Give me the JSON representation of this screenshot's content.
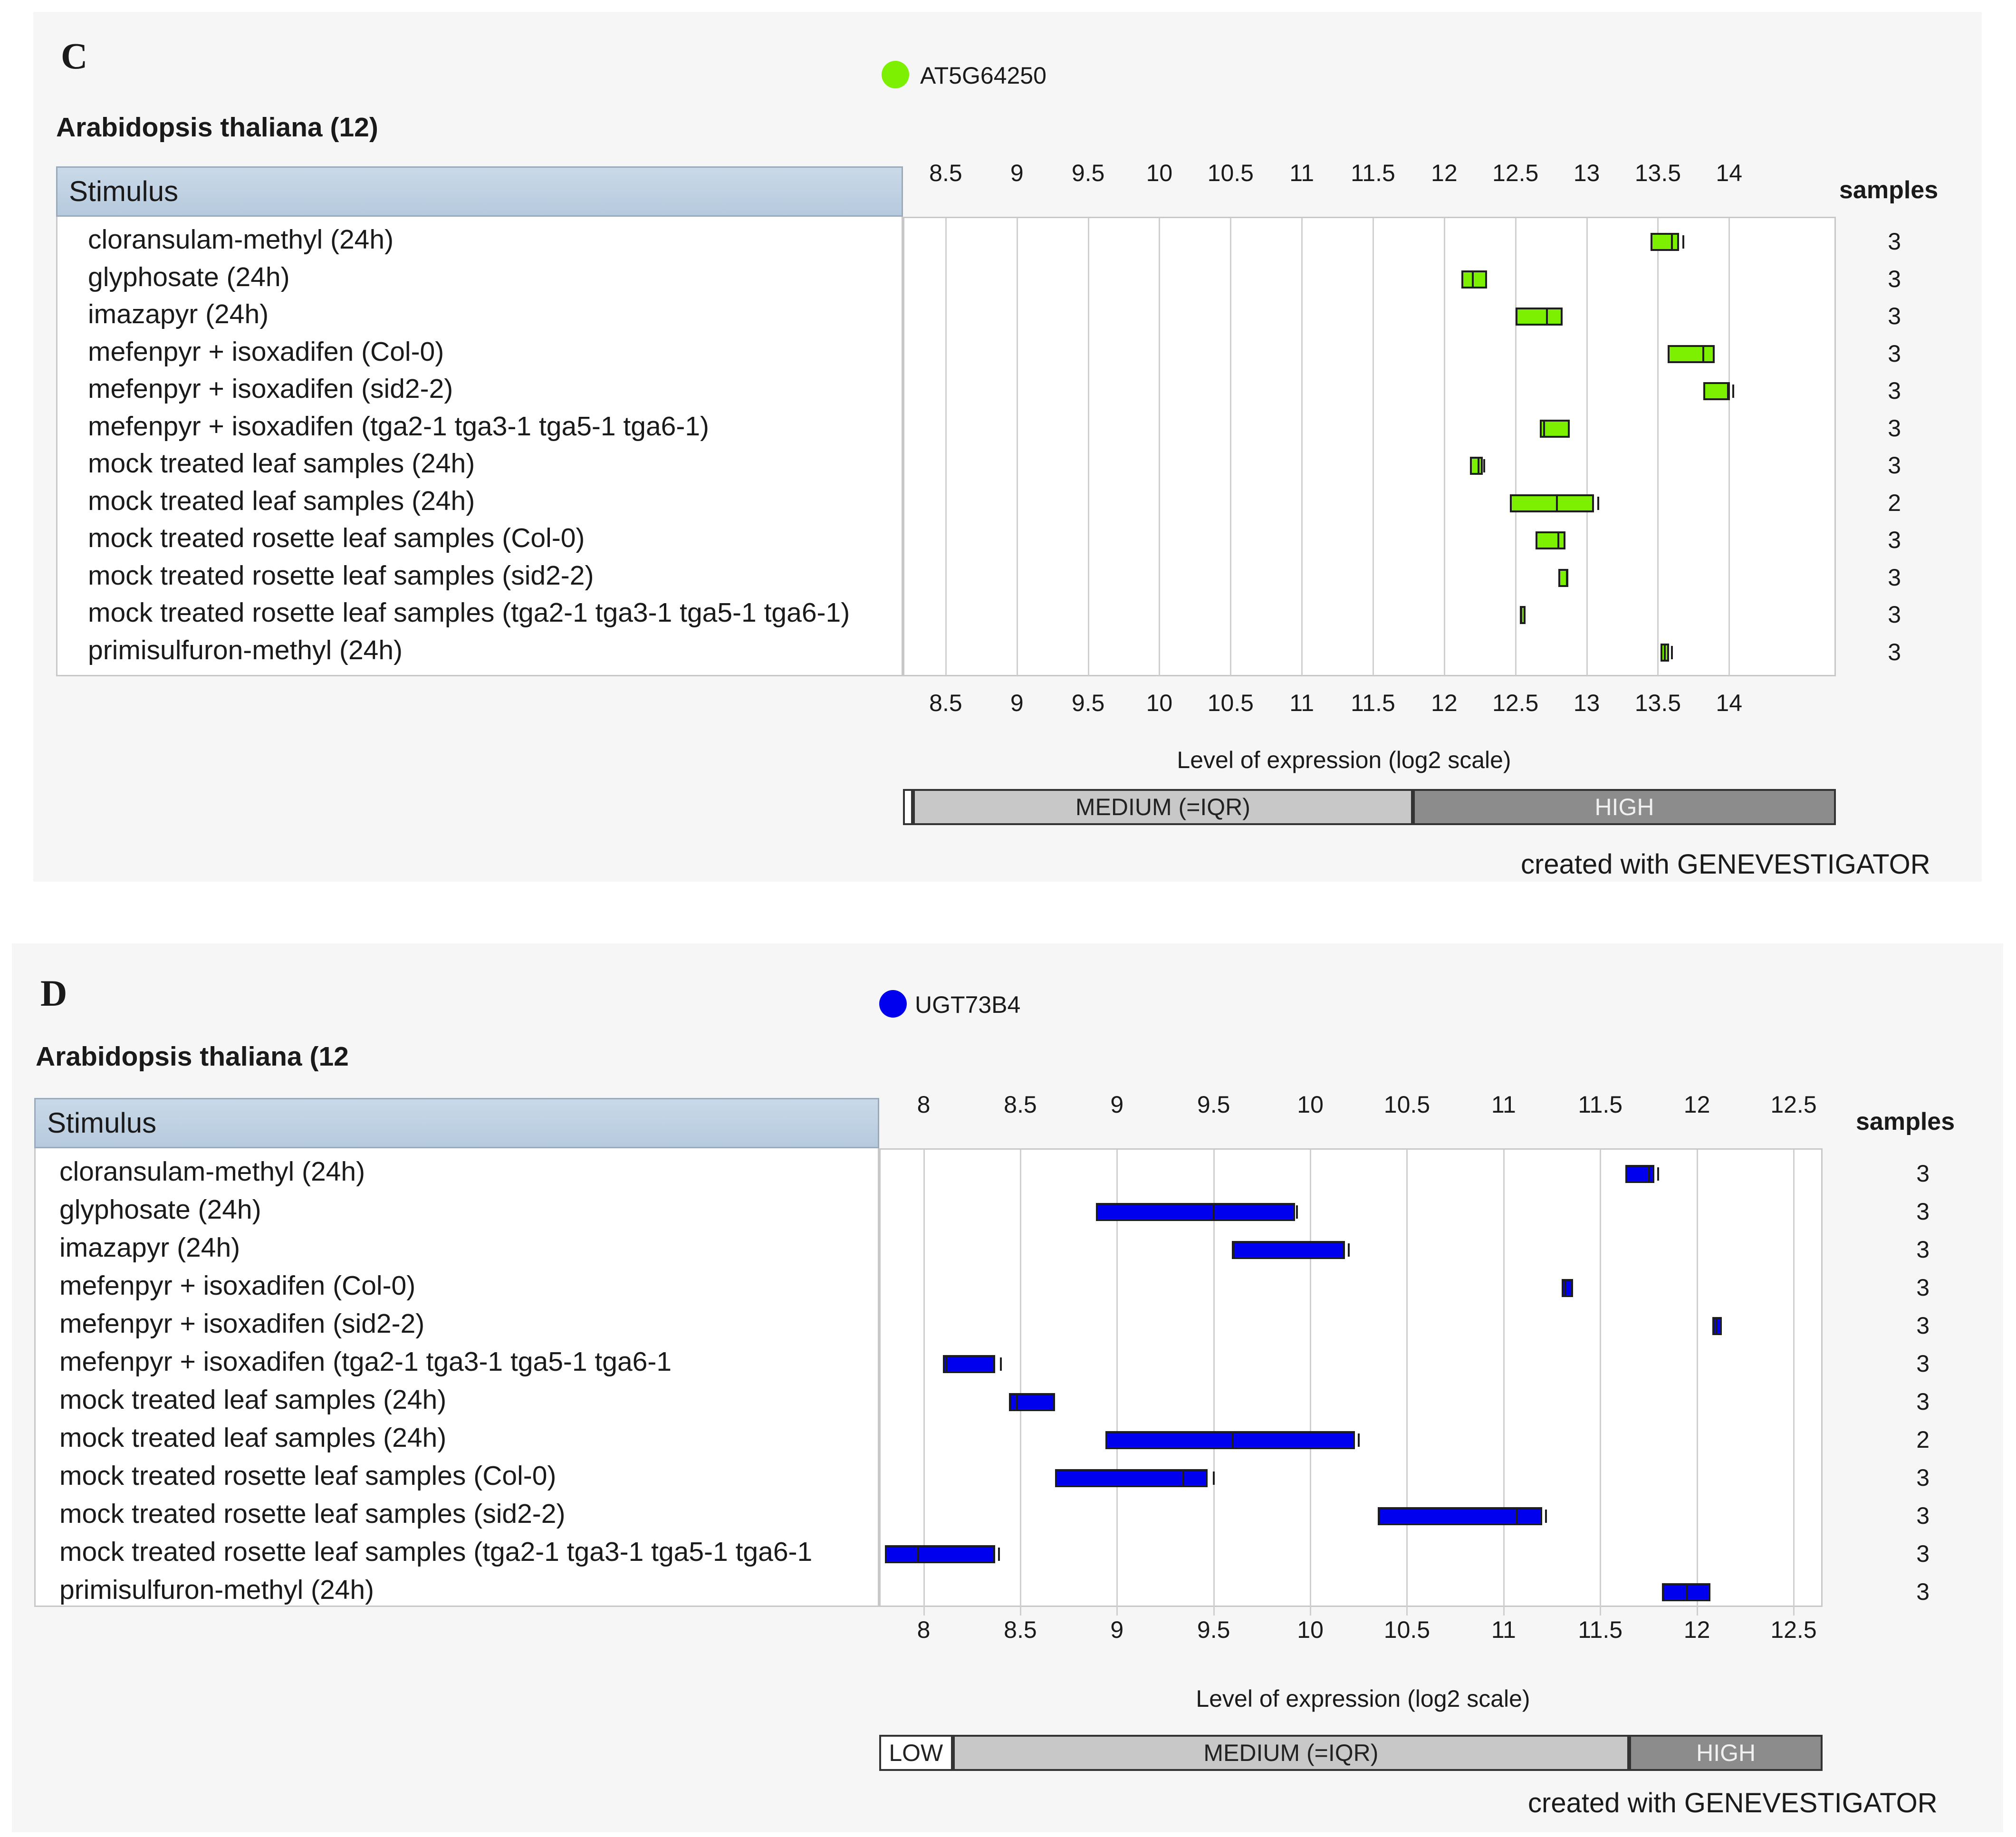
{
  "chart_data": [
    {
      "type": "box",
      "panel_label": "C",
      "legend": {
        "label": "AT5G64250",
        "color": "#7cf000"
      },
      "species_title": "Arabidopsis thaliana (12)",
      "column_header": "Stimulus",
      "samples_header": "samples",
      "x_ticks": [
        "8.5",
        "9",
        "9.5",
        "10",
        "10.5",
        "11",
        "11.5",
        "12",
        "12.5",
        "13",
        "13.5",
        "14"
      ],
      "xlim": [
        8.2,
        14.75
      ],
      "xlabel": "Level of expression (log2 scale)",
      "rows": [
        {
          "label": "cloransulam-methyl (24h)",
          "low": 13.45,
          "q1": 13.45,
          "median": 13.6,
          "q3": 13.65,
          "high": 13.68,
          "samples": "3"
        },
        {
          "label": "glyphosate (24h)",
          "low": 12.12,
          "q1": 12.12,
          "median": 12.2,
          "q3": 12.3,
          "high": 12.3,
          "samples": "3"
        },
        {
          "label": "imazapyr (24h)",
          "low": 12.5,
          "q1": 12.5,
          "median": 12.72,
          "q3": 12.83,
          "high": 12.83,
          "samples": "3"
        },
        {
          "label": "mefenpyr + isoxadifen (Col-0)",
          "low": 13.57,
          "q1": 13.57,
          "median": 13.82,
          "q3": 13.9,
          "high": 13.9,
          "samples": "3"
        },
        {
          "label": "mefenpyr + isoxadifen (sid2-2)",
          "low": 13.82,
          "q1": 13.82,
          "median": 14.0,
          "q3": 14.0,
          "high": 14.03,
          "samples": "3"
        },
        {
          "label": "mefenpyr + isoxadifen (tga2-1 tga3-1 tga5-1 tga6-1)",
          "low": 12.65,
          "q1": 12.67,
          "median": 12.7,
          "q3": 12.88,
          "high": 12.88,
          "samples": "3"
        },
        {
          "label": "mock treated leaf samples (24h)",
          "low": 12.18,
          "q1": 12.18,
          "median": 12.24,
          "q3": 12.27,
          "high": 12.28,
          "samples": "3"
        },
        {
          "label": "mock treated leaf samples (24h)",
          "low": 12.46,
          "q1": 12.46,
          "median": 12.79,
          "q3": 13.05,
          "high": 13.08,
          "samples": "2"
        },
        {
          "label": "mock treated rosette leaf samples (Col-0)",
          "low": 12.64,
          "q1": 12.64,
          "median": 12.8,
          "q3": 12.85,
          "high": 12.85,
          "samples": "3"
        },
        {
          "label": "mock treated rosette leaf samples (sid2-2)",
          "low": 12.8,
          "q1": 12.8,
          "median": 12.86,
          "q3": 12.87,
          "high": 12.87,
          "samples": "3"
        },
        {
          "label": "mock treated rosette leaf samples (tga2-1 tga3-1 tga5-1 tga6-1)",
          "low": 12.53,
          "q1": 12.53,
          "median": 12.54,
          "q3": 12.56,
          "high": 12.56,
          "samples": "3"
        },
        {
          "label": "primisulfuron-methyl (24h)",
          "low": 13.52,
          "q1": 13.52,
          "median": 13.55,
          "q3": 13.58,
          "high": 13.6,
          "samples": "3"
        }
      ],
      "levels": [
        {
          "label": "",
          "from": 8.2,
          "to": 8.27,
          "color": "#ffffff",
          "text_color": "#222222"
        },
        {
          "label": "MEDIUM (=IQR)",
          "from": 8.27,
          "to": 11.78,
          "color": "#c8c8c8",
          "text_color": "#222222"
        },
        {
          "label": "HIGH",
          "from": 11.78,
          "to": 14.75,
          "color": "#8c8c8c",
          "text_color": "#f0f0f0"
        }
      ],
      "credit": "created with GENEVESTIGATOR"
    },
    {
      "type": "box",
      "panel_label": "D",
      "legend": {
        "label": "UGT73B4",
        "color": "#0000ee"
      },
      "species_title": "Arabidopsis thaliana (12",
      "column_header": "Stimulus",
      "samples_header": "samples",
      "x_ticks": [
        "8",
        "8.5",
        "9",
        "9.5",
        "10",
        "10.5",
        "11",
        "11.5",
        "12",
        "12.5"
      ],
      "xlim": [
        7.77,
        12.65
      ],
      "xlabel": "Level of expression (log2 scale)",
      "rows": [
        {
          "label": "cloransulam-methyl (24h)",
          "low": 11.63,
          "q1": 11.63,
          "median": 11.75,
          "q3": 11.78,
          "high": 11.8,
          "samples": "3"
        },
        {
          "label": "glyphosate (24h)",
          "low": 8.89,
          "q1": 8.89,
          "median": 9.5,
          "q3": 9.92,
          "high": 9.93,
          "samples": "3"
        },
        {
          "label": "imazapyr (24h)",
          "low": 9.6,
          "q1": 9.6,
          "median": 9.6,
          "q3": 10.18,
          "high": 10.2,
          "samples": "3"
        },
        {
          "label": "mefenpyr + isoxadifen (Col-0)",
          "low": 11.3,
          "q1": 11.3,
          "median": 11.32,
          "q3": 11.36,
          "high": 11.36,
          "samples": "3"
        },
        {
          "label": "mefenpyr + isoxadifen (sid2-2)",
          "low": 12.08,
          "q1": 12.08,
          "median": 12.1,
          "q3": 12.13,
          "high": 12.13,
          "samples": "3"
        },
        {
          "label": "mefenpyr + isoxadifen (tga2-1 tga3-1 tga5-1 tga6-1",
          "low": 8.06,
          "q1": 8.1,
          "median": 8.12,
          "q3": 8.37,
          "high": 8.4,
          "samples": "3"
        },
        {
          "label": "mock treated leaf samples (24h)",
          "low": 8.44,
          "q1": 8.44,
          "median": 8.48,
          "q3": 8.68,
          "high": 8.68,
          "samples": "3"
        },
        {
          "label": "mock treated leaf samples (24h)",
          "low": 8.94,
          "q1": 8.94,
          "median": 9.6,
          "q3": 10.23,
          "high": 10.25,
          "samples": "2"
        },
        {
          "label": "mock treated rosette leaf samples (Col-0)",
          "low": 8.68,
          "q1": 8.68,
          "median": 9.34,
          "q3": 9.47,
          "high": 9.5,
          "samples": "3"
        },
        {
          "label": "mock treated rosette leaf samples (sid2-2)",
          "low": 10.35,
          "q1": 10.35,
          "median": 11.07,
          "q3": 11.2,
          "high": 11.22,
          "samples": "3"
        },
        {
          "label": "mock treated rosette leaf samples (tga2-1 tga3-1 tga5-1 tga6-1",
          "low": 7.8,
          "q1": 7.8,
          "median": 7.97,
          "q3": 8.37,
          "high": 8.39,
          "samples": "3"
        },
        {
          "label": "primisulfuron-methyl (24h)",
          "low": 11.82,
          "q1": 11.82,
          "median": 11.95,
          "q3": 12.07,
          "high": 12.07,
          "samples": "3"
        }
      ],
      "levels": [
        {
          "label": "LOW",
          "from": 7.77,
          "to": 8.15,
          "color": "#ffffff",
          "text_color": "#222222"
        },
        {
          "label": "MEDIUM (=IQR)",
          "from": 8.15,
          "to": 11.65,
          "color": "#c8c8c8",
          "text_color": "#222222"
        },
        {
          "label": "HIGH",
          "from": 11.65,
          "to": 12.65,
          "color": "#8c8c8c",
          "text_color": "#f0f0f0"
        }
      ],
      "credit": "created with GENEVESTIGATOR"
    }
  ]
}
